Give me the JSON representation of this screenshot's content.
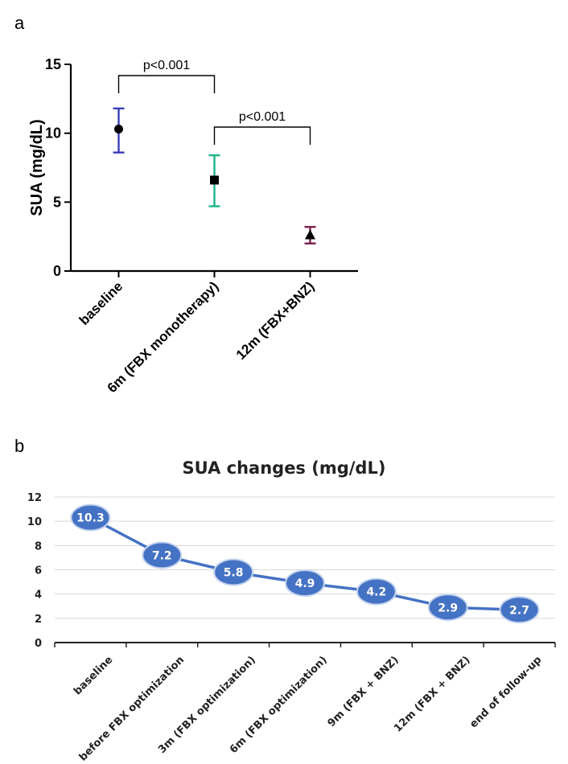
{
  "panels": {
    "a_label": "a",
    "b_label": "b"
  },
  "chart_data": [
    {
      "type": "scatter",
      "title": "",
      "ylabel": "SUA (mg/dL)",
      "xlabel": "",
      "ylim": [
        0,
        15
      ],
      "yticks": [
        0,
        5,
        10,
        15
      ],
      "grid": false,
      "categories": [
        "baseline",
        "6m (FBX monotherapy)",
        "12m (FBX+BNZ)"
      ],
      "series": [
        {
          "values": [
            10.3,
            6.6,
            2.6
          ],
          "error_low": [
            8.6,
            4.7,
            2.0
          ],
          "error_high": [
            11.8,
            8.4,
            3.2
          ],
          "markers": [
            "circle",
            "square",
            "triangle"
          ],
          "error_colors": [
            "#3d3dbb",
            "#1fb38a",
            "#7a1f4f"
          ]
        }
      ],
      "annotations": [
        {
          "text": "p<0.001",
          "from": 0,
          "to": 1
        },
        {
          "text": "p<0.001",
          "from": 1,
          "to": 2
        }
      ]
    },
    {
      "type": "line",
      "title": "SUA changes (mg/dL)",
      "xlabel": "",
      "ylabel": "",
      "ylim": [
        0,
        12
      ],
      "yticks": [
        0,
        2,
        4,
        6,
        8,
        10,
        12
      ],
      "grid": true,
      "categories": [
        "baseline",
        "before FBX optimization",
        "3m (FBX optimization)",
        "6m (FBX optimization)",
        "9m (FBX + BNZ)",
        "12m (FBX + BNZ)",
        "end of follow-up"
      ],
      "series": [
        {
          "values": [
            10.3,
            7.2,
            5.8,
            4.9,
            4.2,
            2.9,
            2.7
          ],
          "labels": [
            "10.3",
            "7.2",
            "5.8",
            "4.9",
            "4.2",
            "2.9",
            "2.7"
          ],
          "color": "#4472c4"
        }
      ]
    }
  ]
}
